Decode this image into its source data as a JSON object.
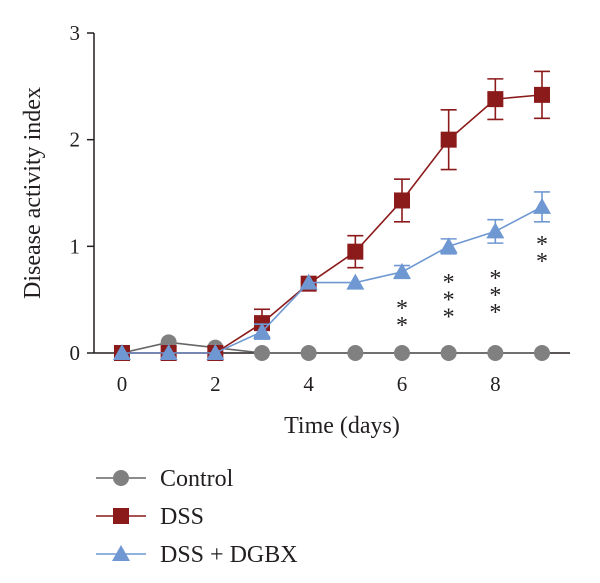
{
  "chart_data": {
    "type": "line",
    "title": "",
    "xlabel": "Time (days)",
    "ylabel": "Disease activity index",
    "xlim": [
      -0.6,
      9.6
    ],
    "ylim": [
      0,
      3
    ],
    "x_ticks": [
      "0",
      "2",
      "4",
      "6",
      "8"
    ],
    "y_ticks": [
      "0",
      "1",
      "2",
      "3"
    ],
    "grid": false,
    "legend_position": "bottom-left",
    "series": [
      {
        "name": "Control",
        "marker": "circle",
        "color": "#808080",
        "line_color": "#666666",
        "x": [
          0,
          1,
          2,
          3,
          4,
          5,
          6,
          7,
          8,
          9
        ],
        "y": [
          0,
          0.1,
          0.05,
          0,
          0,
          0,
          0,
          0,
          0,
          0
        ],
        "err": [
          0,
          0,
          0,
          0,
          0,
          0,
          0,
          0,
          0,
          0
        ]
      },
      {
        "name": "DSS",
        "marker": "square",
        "color": "#8b1a1a",
        "line_color": "#8b1a1a",
        "x": [
          0,
          1,
          2,
          3,
          4,
          5,
          6,
          7,
          8,
          9
        ],
        "y": [
          0,
          0,
          0,
          0.28,
          0.65,
          0.95,
          1.43,
          2.0,
          2.38,
          2.42
        ],
        "err": [
          0,
          0,
          0,
          0.13,
          0,
          0.15,
          0.2,
          0.28,
          0.19,
          0.22
        ]
      },
      {
        "name": "DSS + DGBX",
        "marker": "triangle",
        "color": "#6f98d3",
        "line_color": "#6f98d3",
        "x": [
          0,
          1,
          2,
          3,
          4,
          5,
          6,
          7,
          8,
          9
        ],
        "y": [
          0,
          0,
          0,
          0.2,
          0.66,
          0.66,
          0.76,
          1.0,
          1.14,
          1.37
        ],
        "err": [
          0,
          0,
          0,
          0.07,
          0,
          0,
          0.06,
          0.07,
          0.11,
          0.14
        ]
      }
    ],
    "annotations": [
      {
        "x": 6,
        "y": 0.48,
        "text": "*"
      },
      {
        "x": 6,
        "y": 0.32,
        "text": "*"
      },
      {
        "x": 7,
        "y": 0.72,
        "text": "*"
      },
      {
        "x": 7,
        "y": 0.56,
        "text": "*"
      },
      {
        "x": 7,
        "y": 0.4,
        "text": "*"
      },
      {
        "x": 8,
        "y": 0.76,
        "text": "*"
      },
      {
        "x": 8,
        "y": 0.6,
        "text": "*"
      },
      {
        "x": 8,
        "y": 0.44,
        "text": "*"
      },
      {
        "x": 9,
        "y": 1.08,
        "text": "*"
      },
      {
        "x": 9,
        "y": 0.92,
        "text": "*"
      }
    ]
  }
}
